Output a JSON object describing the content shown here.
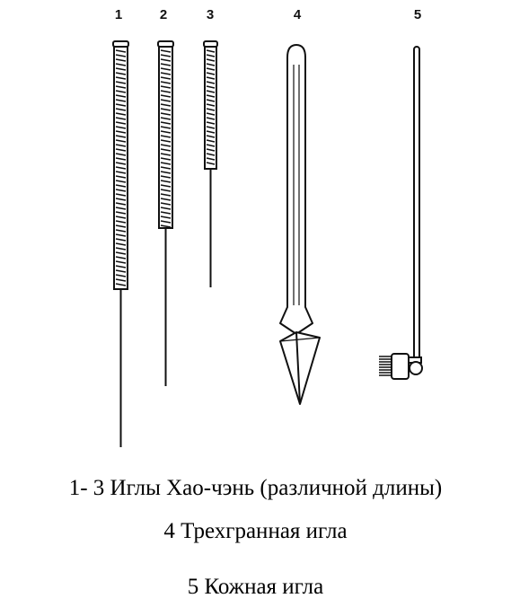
{
  "needles": [
    {
      "number": "1",
      "icon": "filiform-needle-long-icon"
    },
    {
      "number": "2",
      "icon": "filiform-needle-medium-icon"
    },
    {
      "number": "3",
      "icon": "filiform-needle-short-icon"
    },
    {
      "number": "4",
      "icon": "three-edged-needle-icon"
    },
    {
      "number": "5",
      "icon": "cutaneous-needle-icon"
    }
  ],
  "captions": {
    "line1": "1- 3 Иглы Хао-чэнь (различной длины)",
    "line2": "4 Трехгранная игла",
    "line3": "5 Кожная игла"
  },
  "colors": {
    "ink": "#111111",
    "background": "#ffffff"
  }
}
